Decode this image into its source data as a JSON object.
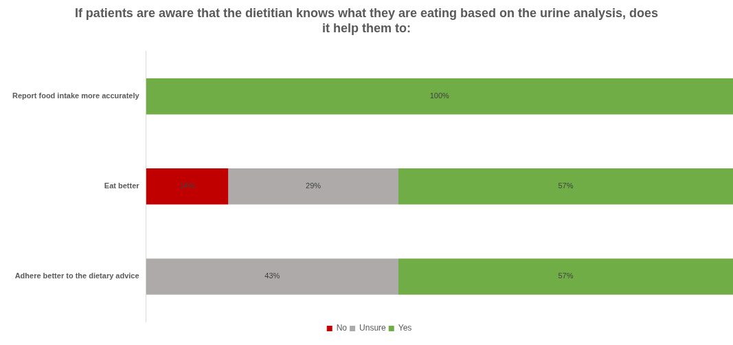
{
  "chart_data": {
    "type": "bar",
    "orientation": "horizontal",
    "stacked": true,
    "title": "If patients are aware that the dietitian knows what they are eating based on the urine analysis, does it help them to:",
    "categories": [
      "Report food intake more accurately",
      "Eat better",
      "Adhere better to the dietary advice"
    ],
    "series": [
      {
        "name": "No",
        "color": "#c00000",
        "values": [
          null,
          14,
          null
        ],
        "value_labels": [
          null,
          "14%",
          null
        ]
      },
      {
        "name": "Unsure",
        "color": "#aeaaaa",
        "values": [
          null,
          29,
          43
        ],
        "value_labels": [
          null,
          "29%",
          "43%"
        ]
      },
      {
        "name": "Yes",
        "color": "#70ad47",
        "values": [
          100,
          57,
          57
        ],
        "value_labels": [
          "100%",
          "57%",
          "57%"
        ]
      }
    ],
    "tick_labels": "y",
    "grid": false,
    "legend": "bottom"
  }
}
